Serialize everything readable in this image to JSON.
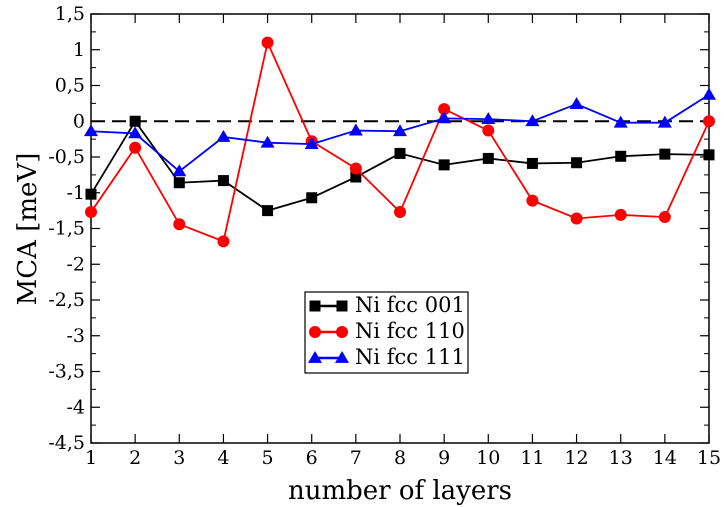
{
  "chart_data": {
    "type": "line",
    "title": "",
    "xlabel": "number of layers",
    "ylabel": "MCA [meV]",
    "x": [
      1,
      2,
      3,
      4,
      5,
      6,
      7,
      8,
      9,
      10,
      11,
      12,
      13,
      14,
      15
    ],
    "xlim": [
      1,
      15
    ],
    "ylim": [
      -4.5,
      1.5
    ],
    "x_ticks": [
      "1",
      "2",
      "3",
      "4",
      "5",
      "6",
      "7",
      "8",
      "9",
      "10",
      "11",
      "12",
      "13",
      "14",
      "15"
    ],
    "y_ticks": [
      {
        "value": 1.5,
        "label": "1,5"
      },
      {
        "value": 1.0,
        "label": "1"
      },
      {
        "value": 0.5,
        "label": "0,5"
      },
      {
        "value": 0.0,
        "label": "0"
      },
      {
        "value": -0.5,
        "label": "-0,5"
      },
      {
        "value": -1.0,
        "label": "-1"
      },
      {
        "value": -1.5,
        "label": "-1,5"
      },
      {
        "value": -2.0,
        "label": "-2"
      },
      {
        "value": -2.5,
        "label": "-2,5"
      },
      {
        "value": -3.0,
        "label": "-3"
      },
      {
        "value": -3.5,
        "label": "-3,5"
      },
      {
        "value": -4.0,
        "label": "-4"
      },
      {
        "value": -4.5,
        "label": "-4,5"
      }
    ],
    "reference_line": {
      "y": 0,
      "style": "dashed",
      "color": "#000000"
    },
    "grid": false,
    "legend_position": "center",
    "series": [
      {
        "name": "Ni fcc 001",
        "color": "#000000",
        "marker": "square",
        "values": [
          -1.02,
          0.0,
          -0.86,
          -0.83,
          -1.25,
          -1.07,
          -0.78,
          -0.45,
          -0.61,
          -0.52,
          -0.59,
          -0.58,
          -0.49,
          -0.46,
          -0.47
        ]
      },
      {
        "name": "Ni fcc 110",
        "color": "#ff0000",
        "marker": "circle",
        "values": [
          -1.27,
          -0.37,
          -1.44,
          -1.68,
          1.1,
          -0.28,
          -0.66,
          -1.27,
          0.17,
          -0.13,
          -1.11,
          -1.36,
          -1.31,
          -1.34,
          0.0
        ]
      },
      {
        "name": "Ni fcc 111",
        "color": "#0000ff",
        "marker": "triangle",
        "values": [
          -0.14,
          -0.17,
          -0.7,
          -0.22,
          -0.3,
          -0.32,
          -0.13,
          -0.14,
          0.04,
          0.03,
          0.0,
          0.24,
          -0.02,
          -0.02,
          0.37
        ]
      }
    ]
  }
}
